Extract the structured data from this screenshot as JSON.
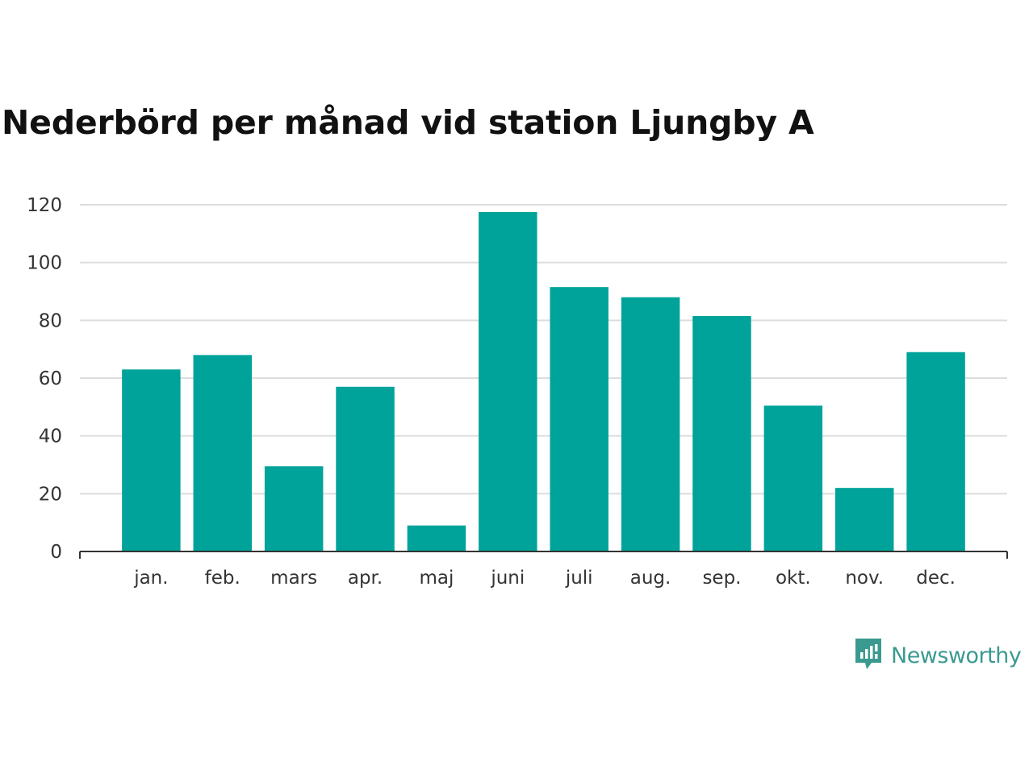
{
  "chart_data": {
    "type": "bar",
    "title": "Nederbörd per månad vid station Ljungby A",
    "xlabel": "",
    "ylabel": "",
    "categories": [
      "jan.",
      "feb.",
      "mars",
      "apr.",
      "maj",
      "juni",
      "juli",
      "aug.",
      "sep.",
      "okt.",
      "nov.",
      "dec."
    ],
    "values": [
      63,
      68,
      29.5,
      57,
      9,
      117.5,
      91.5,
      88,
      81.5,
      50.5,
      22,
      69
    ],
    "ylim": [
      0,
      120
    ],
    "yticks": [
      "0",
      "20",
      "40",
      "60",
      "80",
      "100",
      "120"
    ],
    "grid": true,
    "legend": "none",
    "bar_color": "#00a39a"
  },
  "brand": {
    "name": "Newsworthy",
    "icon": "newsworthy-logo-icon",
    "color": "#3b9a8f"
  }
}
